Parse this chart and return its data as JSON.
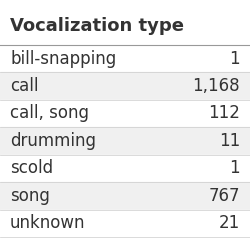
{
  "title": "Vocalization type",
  "rows": [
    {
      "label": "bill-snapping",
      "value": "1"
    },
    {
      "label": "call",
      "value": "1,168"
    },
    {
      "label": "call, song",
      "value": "112"
    },
    {
      "label": "drumming",
      "value": "11"
    },
    {
      "label": "scold",
      "value": "1"
    },
    {
      "label": "song",
      "value": "767"
    },
    {
      "label": "unknown",
      "value": "21"
    }
  ],
  "bg_color": "#ffffff",
  "row_colors": [
    "#ffffff",
    "#f0f0f0"
  ],
  "header_color": "#ffffff",
  "text_color": "#333333",
  "separator_color": "#cccccc",
  "header_separator_color": "#999999",
  "title_fontsize": 13,
  "row_fontsize": 12,
  "fig_width": 2.5,
  "fig_height": 2.42,
  "dpi": 100
}
